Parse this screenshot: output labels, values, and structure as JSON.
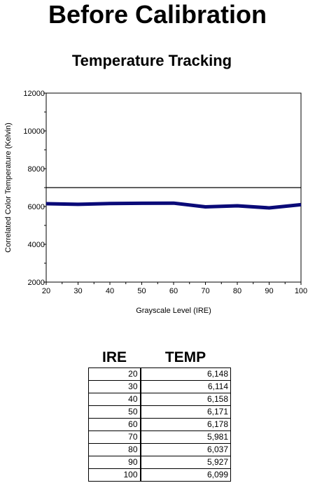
{
  "page_title": "Before Calibration",
  "chart_data": {
    "type": "line",
    "title": "Temperature Tracking",
    "xlabel": "Grayscale Level (IRE)",
    "ylabel": "Correlated Color Temperature (Kelvin)",
    "x": [
      20,
      30,
      40,
      50,
      60,
      70,
      80,
      90,
      100
    ],
    "series": [
      {
        "values": [
          6148,
          6114,
          6158,
          6171,
          6178,
          5981,
          6037,
          5927,
          6099
        ],
        "color": "#0a0a78"
      }
    ],
    "reference_line": 7000,
    "xlim": [
      20,
      100
    ],
    "ylim": [
      2000,
      12000
    ],
    "x_ticks": [
      20,
      30,
      40,
      50,
      60,
      70,
      80,
      90,
      100
    ],
    "y_ticks": [
      2000,
      4000,
      6000,
      8000,
      10000,
      12000
    ],
    "grid": false
  },
  "table": {
    "headers": [
      "IRE",
      "TEMP"
    ],
    "rows": [
      [
        "20",
        "6,148"
      ],
      [
        "30",
        "6,114"
      ],
      [
        "40",
        "6,158"
      ],
      [
        "50",
        "6,171"
      ],
      [
        "60",
        "6,178"
      ],
      [
        "70",
        "5,981"
      ],
      [
        "80",
        "6,037"
      ],
      [
        "90",
        "5,927"
      ],
      [
        "100",
        "6,099"
      ]
    ]
  }
}
